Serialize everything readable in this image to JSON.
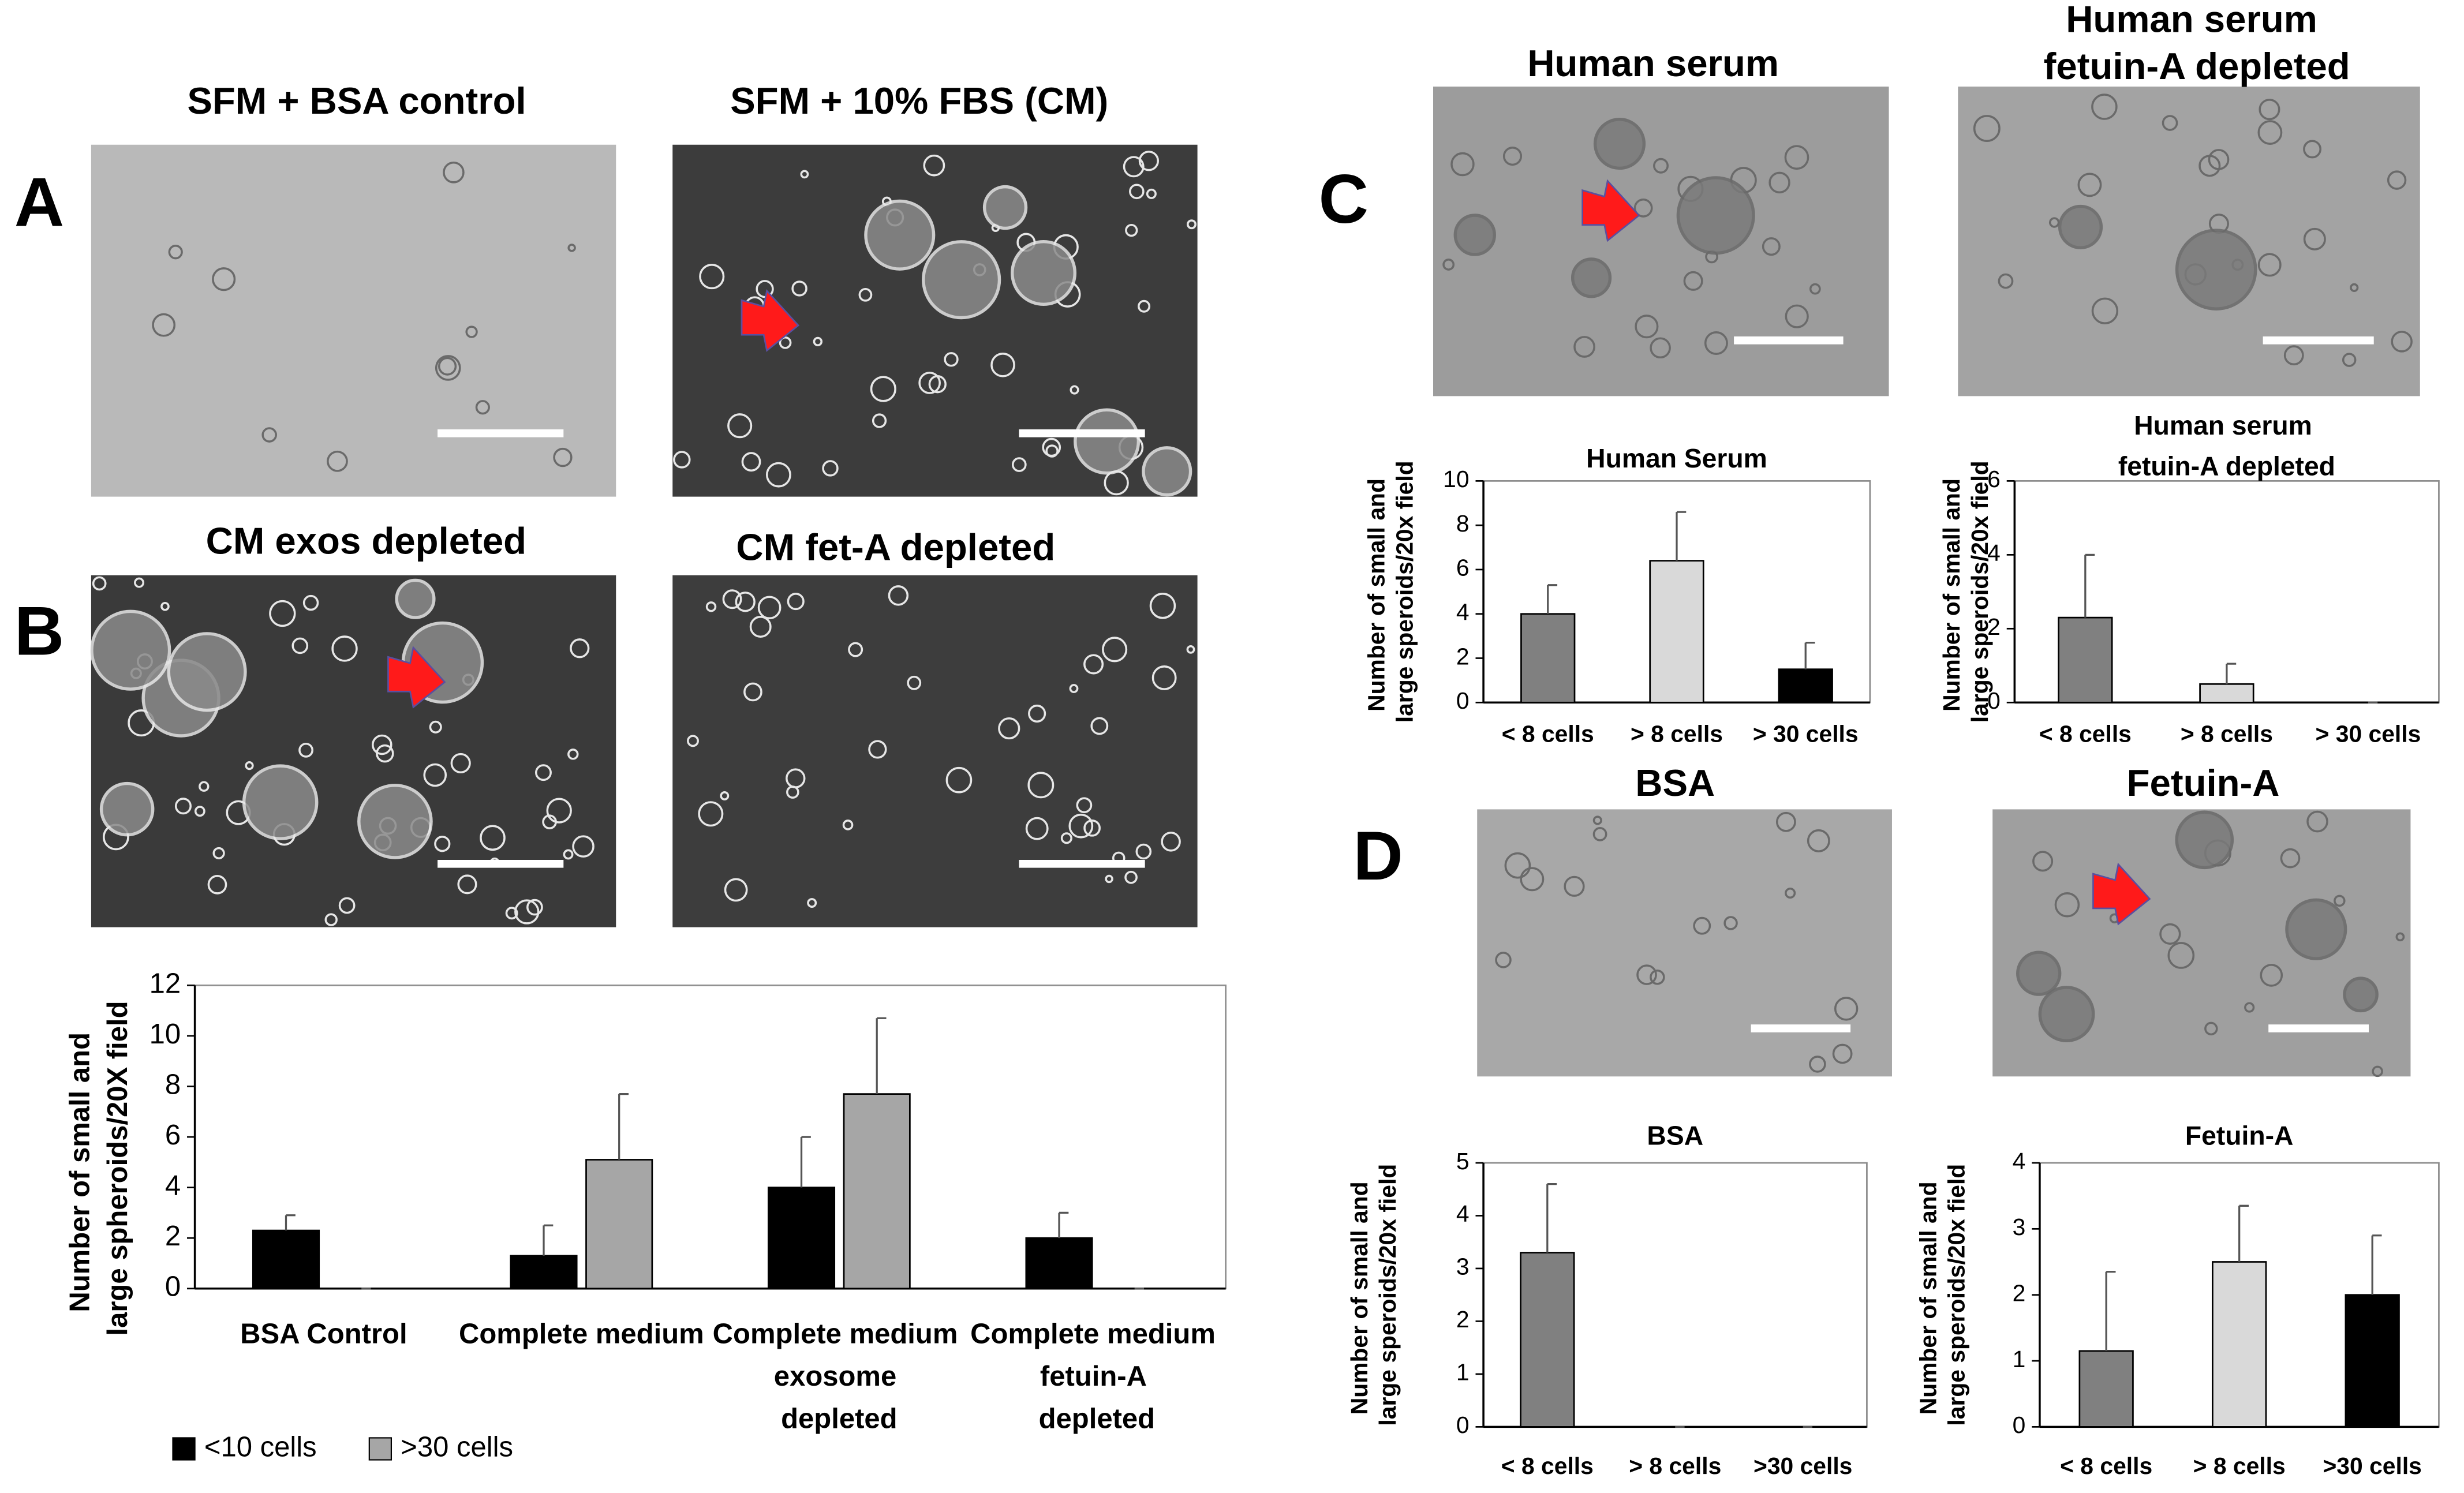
{
  "panel_labels": [
    "A",
    "B",
    "C",
    "D"
  ],
  "images": [
    {
      "title": "SFM + BSA control"
    },
    {
      "title": "SFM + 10% FBS (CM)"
    },
    {
      "title": "CM exos depleted"
    },
    {
      "title": "CM fet-A depleted"
    },
    {
      "title": "Human serum"
    },
    {
      "title": "Human serum fetuin-A depleted"
    },
    {
      "title": "BSA"
    },
    {
      "title": "Fetuin-A"
    }
  ],
  "chart_data": [
    {
      "type": "bar",
      "y_label": "Number of small and large spheroids/20X field",
      "categories": [
        "BSA Control",
        "Complete medium",
        "Complete medium exosome depleted",
        "Complete medium fetuin-A depleted"
      ],
      "series": [
        {
          "name": "<10 cells",
          "color": "#000000",
          "values": [
            2.3,
            1.3,
            4.0,
            2.0
          ],
          "errors": [
            0.6,
            1.2,
            2.0,
            1.0
          ]
        },
        {
          "name": ">30 cells",
          "color": "#a6a6a6",
          "values": [
            0,
            5.1,
            7.7,
            0
          ],
          "errors": [
            0,
            2.6,
            3.0,
            0
          ]
        }
      ],
      "ylim": [
        0,
        12
      ],
      "yticks": [
        0,
        2,
        4,
        6,
        8,
        10,
        12
      ],
      "legend": "bottom-left"
    },
    {
      "type": "bar",
      "title": "Human Serum",
      "y_label": "Number of small and large speroids/20x field",
      "categories": [
        "< 8 cells",
        "> 8 cells",
        "> 30 cells"
      ],
      "values": [
        4.0,
        6.4,
        1.5
      ],
      "errors": [
        1.3,
        2.2,
        1.2
      ],
      "colors": [
        "#808080",
        "#d9d9d9",
        "#000000"
      ],
      "ylim": [
        0,
        10
      ],
      "yticks": [
        0,
        2,
        4,
        6,
        8,
        10
      ]
    },
    {
      "type": "bar",
      "title": "Human serum fetuin-A depleted",
      "y_label": "Number of small and large speroids/20x field",
      "categories": [
        "< 8 cells",
        "> 8 cells",
        "> 30 cells"
      ],
      "values": [
        2.3,
        0.5,
        0
      ],
      "errors": [
        1.7,
        0.55,
        0
      ],
      "colors": [
        "#808080",
        "#d9d9d9",
        "#000000"
      ],
      "ylim": [
        0,
        6
      ],
      "yticks": [
        0,
        2,
        4,
        6
      ]
    },
    {
      "type": "bar",
      "title": "BSA",
      "y_label": "Number of small and large speroids/20x field",
      "categories": [
        "< 8 cells",
        "> 8 cells",
        ">30 cells"
      ],
      "values": [
        3.3,
        0,
        0
      ],
      "errors": [
        1.3,
        0,
        0
      ],
      "colors": [
        "#808080",
        "#d9d9d9",
        "#000000"
      ],
      "ylim": [
        0,
        5
      ],
      "yticks": [
        0,
        1,
        2,
        3,
        4,
        5
      ]
    },
    {
      "type": "bar",
      "title": "Fetuin-A",
      "y_label": "Number of small and large speroids/20x field",
      "categories": [
        "< 8 cells",
        "> 8 cells",
        ">30 cells"
      ],
      "values": [
        1.15,
        2.5,
        2.0
      ],
      "errors": [
        1.2,
        0.85,
        0.9
      ],
      "colors": [
        "#808080",
        "#d9d9d9",
        "#000000"
      ],
      "ylim": [
        0,
        4
      ],
      "yticks": [
        0,
        1,
        2,
        3,
        4
      ]
    }
  ]
}
